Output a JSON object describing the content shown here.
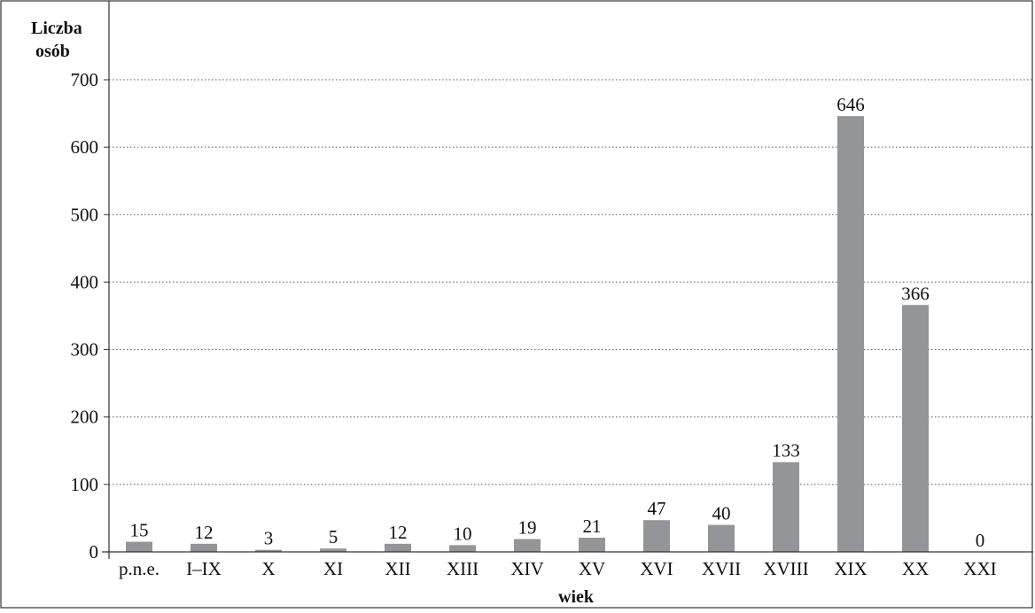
{
  "chart_data": {
    "type": "bar",
    "title": "",
    "ylabel_lines": [
      "Liczba",
      "osób"
    ],
    "xlabel": "wiek",
    "categories": [
      "p.n.e.",
      "I–IX",
      "X",
      "XI",
      "XII",
      "XIII",
      "XIV",
      "XV",
      "XVI",
      "XVII",
      "XVIII",
      "XIX",
      "XX",
      "XXI"
    ],
    "values": [
      15,
      12,
      3,
      5,
      12,
      10,
      19,
      21,
      47,
      40,
      133,
      646,
      366,
      0
    ],
    "data_labels": [
      "15",
      "12",
      "3",
      "5",
      "12",
      "10",
      "19",
      "21",
      "47",
      "40",
      "133",
      "646",
      "366",
      "0"
    ],
    "ylim": [
      0,
      700
    ],
    "yticks": [
      0,
      100,
      200,
      300,
      400,
      500,
      600,
      700
    ],
    "ytick_labels": [
      "0",
      "100",
      "200",
      "300",
      "400",
      "500",
      "600",
      "700"
    ],
    "grid": "horizontal-dotted",
    "legend": "none",
    "colors": {
      "bar": "#939598",
      "frame": "#333333",
      "grid": "#555555",
      "text": "#111111"
    }
  }
}
